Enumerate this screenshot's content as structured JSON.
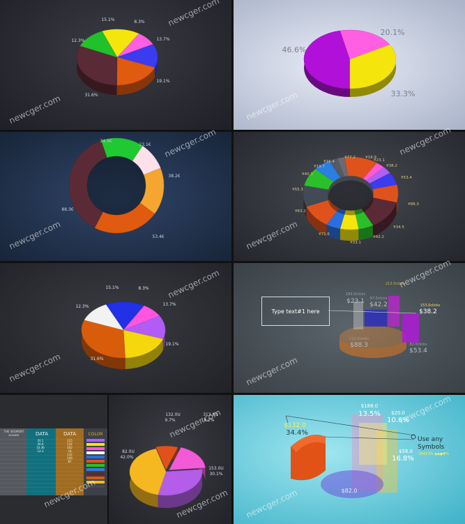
{
  "watermark": "newcger.com",
  "panels": {
    "p1": {
      "labels": [
        "15.1%",
        "8.3%",
        "12.3%",
        "13.7%",
        "19.1%",
        "31.6%"
      ]
    },
    "p2": {
      "labels": [
        "46.6%",
        "20.1%",
        "33.3%"
      ]
    },
    "p3": {
      "labels": [
        "34.5€",
        "23.1€",
        "38.2€",
        "88.3€",
        "53.4€"
      ]
    },
    "p4": {
      "labels": [
        "¥77.2",
        "¥18.9",
        "¥23.1",
        "¥16.4",
        "¥19.7",
        "¥38.2",
        "¥40.3",
        "¥53.4",
        "¥55.3",
        "¥88.3",
        "¥63.2",
        "¥34.5",
        "¥71.6",
        "¥33.1",
        "¥42.2"
      ]
    },
    "p5": {
      "labels": [
        "15.1%",
        "8.3%",
        "12.3%",
        "13.7%",
        "19.1%",
        "31.6%"
      ]
    },
    "p6": {
      "textbox": "Type text#1 here",
      "labels": [
        {
          "top": "213.0clicks",
          "value": ""
        },
        {
          "top": "183.0clicks",
          "value": "$23.1"
        },
        {
          "top": "97.0clicks",
          "value": "$42.2"
        },
        {
          "top": "153.0clicks",
          "value": "$38.2"
        },
        {
          "top": "112.0clicks",
          "value": "$88.3"
        },
        {
          "top": "82.0clicks",
          "value": "$53.4"
        }
      ]
    },
    "p7": {
      "title": "THE SEGMENT",
      "subtitle": "NUMBER",
      "col1": "DATA",
      "col2": "DATA",
      "col3": "COLOR",
      "col1_values": [
        "20.1",
        "46.6",
        "33.36",
        "12.3"
      ],
      "col2_values": [
        "215",
        "132",
        "162",
        "18",
        "132",
        "109",
        "87"
      ]
    },
    "p8": {
      "labels": [
        {
          "a": "132.0U",
          "b": "9.7%"
        },
        {
          "a": "313.0U",
          "b": "18.2%"
        },
        {
          "a": "82.0U",
          "b": "42.0%"
        },
        {
          "a": "153.0U",
          "b": "30.1%"
        }
      ]
    },
    "p9": {
      "labels": [
        {
          "a": "$132.0",
          "b": "34.4%"
        },
        {
          "a": "$188.0",
          "b": "13.5%"
        },
        {
          "a": "$20.0",
          "b": "10.6%"
        },
        {
          "a": "$58.0",
          "b": "16.8%"
        },
        {
          "a": "$82.0",
          "b": ""
        }
      ],
      "symbols": "Use any Symbols",
      "symbols_sub": "05€€3% ◆◆●▼%"
    }
  },
  "chart_data": [
    {
      "type": "pie",
      "series": [
        {
          "values": [
            15.1,
            8.3,
            13.7,
            19.1,
            31.6,
            12.3
          ]
        }
      ]
    },
    {
      "type": "pie",
      "series": [
        {
          "values": [
            46.6,
            20.1,
            33.3
          ]
        }
      ]
    },
    {
      "type": "pie",
      "series": [
        {
          "values": [
            34.5,
            23.1,
            38.2,
            53.4,
            88.3
          ]
        }
      ]
    },
    {
      "type": "pie",
      "series": [
        {
          "values": [
            77.2,
            18.9,
            23.1,
            38.2,
            53.4,
            88.3,
            34.5,
            42.2,
            33.1,
            71.6,
            63.2,
            55.3,
            40.3,
            19.7,
            16.4
          ]
        }
      ]
    },
    {
      "type": "pie",
      "series": [
        {
          "values": [
            15.1,
            8.3,
            13.7,
            19.1,
            31.6,
            12.3
          ]
        }
      ]
    },
    {
      "type": "pie",
      "series": [
        {
          "values": [
            9.7,
            18.2,
            30.1,
            42.0
          ]
        }
      ]
    }
  ],
  "colors": {
    "yellow": "#f4e60c",
    "pink": "#ff5fe0",
    "blue": "#3b3bf0",
    "orange": "#e05a10",
    "maroon": "#5a2a36",
    "green": "#22c02a",
    "purple": "#b010d8",
    "white": "#f4f4f4",
    "gold": "#f5b820"
  }
}
